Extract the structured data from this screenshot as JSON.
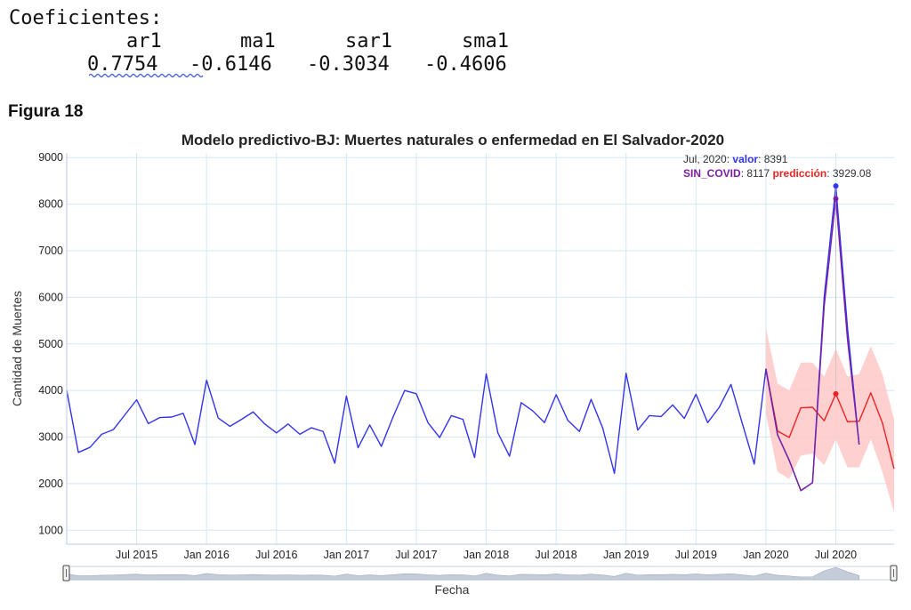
{
  "coefficients": {
    "title": "Coeficientes:",
    "names": [
      "ar1",
      "ma1",
      "sar1",
      "sma1"
    ],
    "values": [
      "0.7754",
      "-0.6146",
      "-0.3034",
      "-0.4606"
    ]
  },
  "figure_label": "Figura 18",
  "chart_data": {
    "type": "line",
    "title": "Modelo predictivo-BJ: Muertes naturales o enfermedad en El Salvador-2020",
    "xlabel": "Fecha",
    "ylabel": "Cantidad de Muertes",
    "ylim": [
      700,
      9100
    ],
    "xlim": [
      "2015-01",
      "2020-12"
    ],
    "yticks": [
      1000,
      2000,
      3000,
      4000,
      5000,
      6000,
      7000,
      8000,
      9000
    ],
    "xticks": [
      {
        "date": "2015-07",
        "label": "Jul 2015"
      },
      {
        "date": "2016-01",
        "label": "Jan 2016"
      },
      {
        "date": "2016-07",
        "label": "Jul 2016"
      },
      {
        "date": "2017-01",
        "label": "Jan 2017"
      },
      {
        "date": "2017-07",
        "label": "Jul 2017"
      },
      {
        "date": "2018-01",
        "label": "Jan 2018"
      },
      {
        "date": "2018-07",
        "label": "Jul 2018"
      },
      {
        "date": "2019-01",
        "label": "Jan 2019"
      },
      {
        "date": "2019-07",
        "label": "Jul 2019"
      },
      {
        "date": "2020-01",
        "label": "Jan 2020"
      },
      {
        "date": "2020-07",
        "label": "Jul 2020"
      }
    ],
    "grid": true,
    "colors": {
      "valor": "#3333ee",
      "sin_covid": "#7a1fa2",
      "prediccion": "#ee2222",
      "band": "#ffc8c8",
      "grid": "#d2e8f4"
    },
    "series": [
      {
        "key": "valor",
        "x": [
          "2015-01",
          "2015-02",
          "2015-03",
          "2015-04",
          "2015-05",
          "2015-06",
          "2015-07",
          "2015-08",
          "2015-09",
          "2015-10",
          "2015-11",
          "2015-12",
          "2016-01",
          "2016-02",
          "2016-03",
          "2016-04",
          "2016-05",
          "2016-06",
          "2016-07",
          "2016-08",
          "2016-09",
          "2016-10",
          "2016-11",
          "2016-12",
          "2017-01",
          "2017-02",
          "2017-03",
          "2017-04",
          "2017-05",
          "2017-06",
          "2017-07",
          "2017-08",
          "2017-09",
          "2017-10",
          "2017-11",
          "2017-12",
          "2018-01",
          "2018-02",
          "2018-03",
          "2018-04",
          "2018-05",
          "2018-06",
          "2018-07",
          "2018-08",
          "2018-09",
          "2018-10",
          "2018-11",
          "2018-12",
          "2019-01",
          "2019-02",
          "2019-03",
          "2019-04",
          "2019-05",
          "2019-06",
          "2019-07",
          "2019-08",
          "2019-09",
          "2019-10",
          "2019-11",
          "2019-12",
          "2020-01",
          "2020-02",
          "2020-03",
          "2020-04",
          "2020-05",
          "2020-06",
          "2020-07",
          "2020-08",
          "2020-09"
        ],
        "values": [
          4000,
          2670,
          2780,
          3060,
          3160,
          3480,
          3800,
          3290,
          3420,
          3430,
          3510,
          2840,
          4220,
          3410,
          3230,
          3380,
          3540,
          3280,
          3090,
          3280,
          3060,
          3200,
          3120,
          2440,
          3880,
          2770,
          3260,
          2800,
          3430,
          4000,
          3930,
          3310,
          2990,
          3460,
          3380,
          2560,
          4360,
          3090,
          2590,
          3740,
          3560,
          3310,
          3910,
          3360,
          3120,
          3810,
          3190,
          2220,
          4370,
          3150,
          3460,
          3440,
          3690,
          3400,
          3920,
          3310,
          3640,
          4130,
          3270,
          2420,
          4460,
          3050,
          2500,
          1850,
          2020,
          6000,
          8391,
          5350,
          2840
        ]
      },
      {
        "key": "sin_covid",
        "x": [
          "2020-01",
          "2020-02",
          "2020-03",
          "2020-04",
          "2020-05",
          "2020-06",
          "2020-07",
          "2020-08",
          "2020-09"
        ],
        "values": [
          4460,
          3050,
          2500,
          1850,
          2020,
          5800,
          8117,
          5100,
          2840
        ]
      },
      {
        "key": "prediccion",
        "x": [
          "2020-01",
          "2020-02",
          "2020-03",
          "2020-04",
          "2020-05",
          "2020-06",
          "2020-07",
          "2020-08",
          "2020-09",
          "2020-10",
          "2020-11",
          "2020-12"
        ],
        "values": [
          4460,
          3130,
          2990,
          3630,
          3640,
          3350,
          3929.08,
          3330,
          3340,
          3950,
          3300,
          2320
        ],
        "upper": [
          5350,
          4150,
          4000,
          4600,
          4600,
          4300,
          4900,
          4300,
          4350,
          4950,
          4350,
          3380
        ],
        "lower": [
          3500,
          2250,
          2100,
          2600,
          2650,
          2400,
          2950,
          2350,
          2350,
          2950,
          2250,
          1380
        ]
      }
    ],
    "hover": {
      "date_label": "Jul, 2020:",
      "valor_label": "valor",
      "valor_value": "8391",
      "sin_covid_label": "SIN_COVID",
      "sin_covid_value": "8117",
      "prediccion_label": "predicción",
      "prediccion_value": "3929.08"
    }
  }
}
